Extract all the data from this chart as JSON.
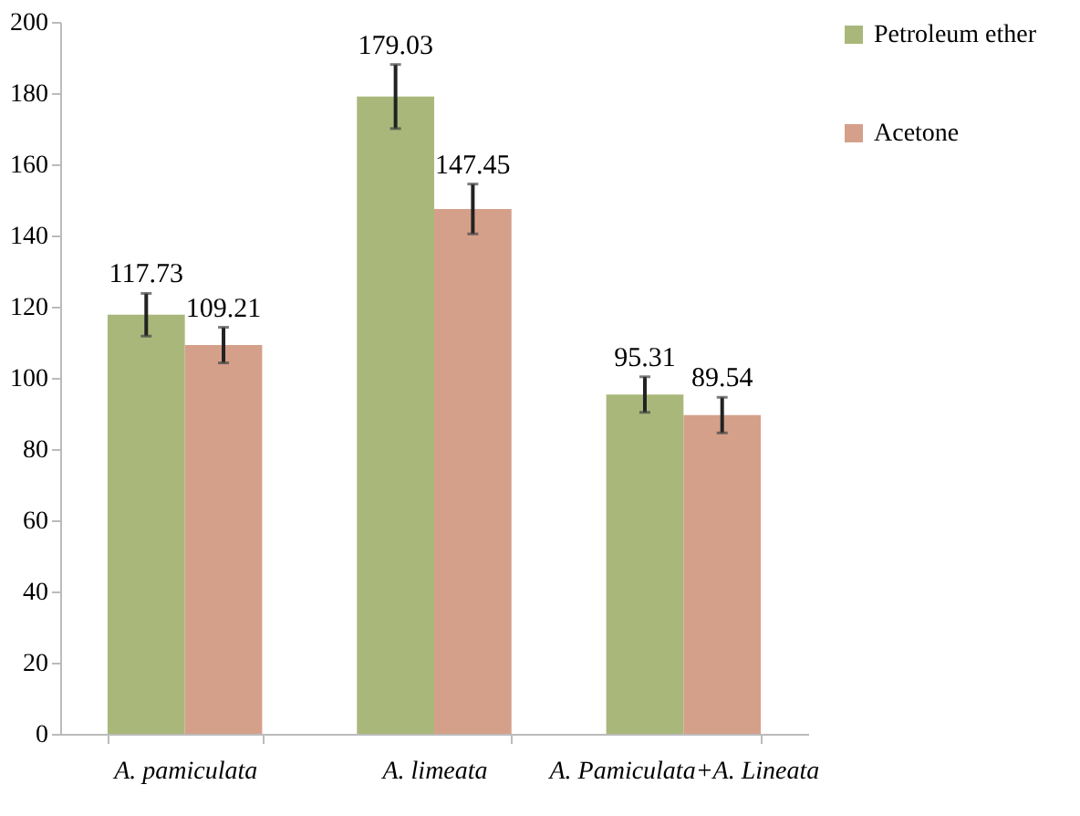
{
  "chart_data": {
    "type": "bar",
    "categories": [
      "A. pamiculata",
      "A. limeata",
      "A. Pamiculata+A. Lineata"
    ],
    "series": [
      {
        "name": "Petroleum ether",
        "color": "#a9b87a",
        "values": [
          117.73,
          179.03,
          95.31
        ],
        "errors": [
          6,
          9,
          5
        ]
      },
      {
        "name": "Acetone",
        "color": "#d5a08a",
        "values": [
          109.21,
          147.45,
          89.54
        ],
        "errors": [
          5,
          7,
          5
        ]
      }
    ],
    "ylim": [
      0,
      200
    ],
    "yticks": [
      0,
      20,
      40,
      60,
      80,
      100,
      120,
      140,
      160,
      180,
      200
    ],
    "data_labels": true,
    "legend": "right",
    "grid": false
  }
}
